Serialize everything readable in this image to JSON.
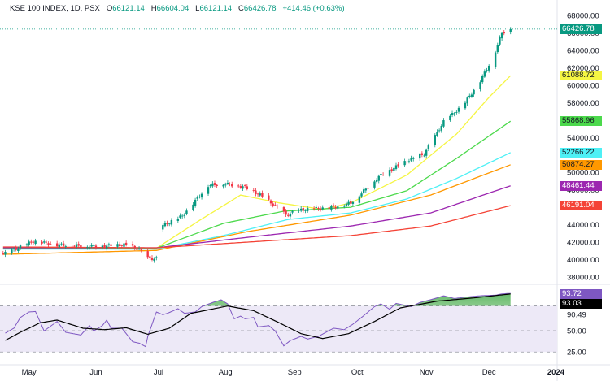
{
  "legend": {
    "symbol": "KSE 100 INDEX, 1D, PSX",
    "o_label": "O",
    "o": "66121.14",
    "h_label": "H",
    "h": "66604.04",
    "l_label": "L",
    "l": "66121.14",
    "c_label": "C",
    "c": "66426.78",
    "change": "+414.46 (+0.63%)"
  },
  "colors": {
    "up": "#089981",
    "down": "#f23645",
    "rsi": "#7e57c2",
    "rsi_ma": "#000000",
    "rsi_band_fill": "#ede9f7"
  },
  "chart_data": [
    {
      "type": "candlestick",
      "title": "KSE 100 INDEX, 1D, PSX",
      "ylim": [
        38000,
        68000
      ],
      "y_ticks": [
        "68000.00",
        "66000.00",
        "64000.00",
        "62000.00",
        "60000.00",
        "58000.00",
        "56000.00",
        "54000.00",
        "52000.00",
        "50000.00",
        "48000.00",
        "46000.00",
        "44000.00",
        "42000.00",
        "40000.00",
        "38000.00"
      ],
      "x_ticks": [
        "May",
        "Jun",
        "Jul",
        "Aug",
        "Sep",
        "Oct",
        "Nov",
        "Dec",
        "2024"
      ],
      "last_price": "66426.78",
      "close_keypoints": [
        [
          "2023-04-20",
          40600
        ],
        [
          "2023-05-04",
          42100
        ],
        [
          "2023-05-15",
          41700
        ],
        [
          "2023-06-01",
          41500
        ],
        [
          "2023-06-15",
          41700
        ],
        [
          "2023-06-22",
          41200
        ],
        [
          "2023-06-26",
          40150
        ],
        [
          "2023-06-30",
          40100
        ],
        [
          "2023-07-03",
          43900
        ],
        [
          "2023-07-12",
          45000
        ],
        [
          "2023-07-24",
          48500
        ],
        [
          "2023-08-01",
          48700
        ],
        [
          "2023-08-10",
          48300
        ],
        [
          "2023-08-17",
          47400
        ],
        [
          "2023-08-25",
          46000
        ],
        [
          "2023-08-29",
          45100
        ],
        [
          "2023-09-05",
          45700
        ],
        [
          "2023-09-20",
          46000
        ],
        [
          "2023-09-28",
          46500
        ],
        [
          "2023-10-12",
          49700
        ],
        [
          "2023-10-24",
          51300
        ],
        [
          "2023-11-01",
          52100
        ],
        [
          "2023-11-10",
          55800
        ],
        [
          "2023-11-19",
          57700
        ],
        [
          "2023-11-27",
          60500
        ],
        [
          "2023-12-03",
          63250
        ],
        [
          "2023-12-07",
          66000
        ],
        [
          "2023-12-11",
          66426.78
        ]
      ],
      "moving_averages": [
        {
          "color": "#f5f542",
          "label": "61088.72",
          "label_text": "#131722",
          "points": [
            [
              "2023-04-20",
              41300
            ],
            [
              "2023-06-30",
              41300
            ],
            [
              "2023-07-20",
              44500
            ],
            [
              "2023-08-08",
              47400
            ],
            [
              "2023-08-26",
              46500
            ],
            [
              "2023-09-15",
              45750
            ],
            [
              "2023-09-28",
              46500
            ],
            [
              "2023-10-24",
              49700
            ],
            [
              "2023-11-16",
              54400
            ],
            [
              "2023-12-01",
              58600
            ],
            [
              "2023-12-11",
              61088.72
            ]
          ]
        },
        {
          "color": "#4cd94c",
          "label": "55868.96",
          "label_text": "#131722",
          "points": [
            [
              "2023-04-20",
              41250
            ],
            [
              "2023-06-30",
              41300
            ],
            [
              "2023-07-31",
              44150
            ],
            [
              "2023-08-28",
              45550
            ],
            [
              "2023-09-28",
              46000
            ],
            [
              "2023-10-24",
              47900
            ],
            [
              "2023-11-16",
              51600
            ],
            [
              "2023-12-11",
              55868.96
            ]
          ]
        },
        {
          "color": "#4ef0f5",
          "label": "52266.22",
          "label_text": "#131722",
          "points": [
            [
              "2023-04-20",
              41200
            ],
            [
              "2023-06-30",
              41200
            ],
            [
              "2023-07-31",
              42750
            ],
            [
              "2023-08-30",
              44600
            ],
            [
              "2023-09-28",
              45350
            ],
            [
              "2023-10-24",
              46950
            ],
            [
              "2023-11-16",
              49300
            ],
            [
              "2023-12-11",
              52266.22
            ]
          ]
        },
        {
          "color": "#ff9800",
          "label": "50874.27",
          "label_text": "#131722",
          "points": [
            [
              "2023-04-20",
              40600
            ],
            [
              "2023-06-30",
              41050
            ],
            [
              "2023-08-11",
              43200
            ],
            [
              "2023-09-28",
              45100
            ],
            [
              "2023-11-04",
              47400
            ],
            [
              "2023-12-11",
              50874.27
            ]
          ]
        },
        {
          "color": "#9c27b0",
          "label": "48461.44",
          "label_text": "#ffffff",
          "points": [
            [
              "2023-04-20",
              41350
            ],
            [
              "2023-06-30",
              41350
            ],
            [
              "2023-08-11",
              42550
            ],
            [
              "2023-09-28",
              43850
            ],
            [
              "2023-11-04",
              45350
            ],
            [
              "2023-12-11",
              48461.44
            ]
          ]
        },
        {
          "color": "#f44336",
          "label": "46191.04",
          "label_text": "#ffffff",
          "points": [
            [
              "2023-04-20",
              41450
            ],
            [
              "2023-06-30",
              41350
            ],
            [
              "2023-08-11",
              42000
            ],
            [
              "2023-09-28",
              42750
            ],
            [
              "2023-11-04",
              43850
            ],
            [
              "2023-12-11",
              46191.04
            ]
          ]
        }
      ]
    },
    {
      "type": "line",
      "ylim": [
        22,
        100
      ],
      "bands": [
        25,
        50,
        79
      ],
      "y_ticks": [
        "90.49",
        "50.00",
        "25.00"
      ],
      "rsi_label": "93.72",
      "rsi_ma_label": "93.03",
      "rsi": [
        [
          "2023-04-21",
          47.1
        ],
        [
          "2023-04-25",
          52.9
        ],
        [
          "2023-04-28",
          65.5
        ],
        [
          "2023-05-02",
          71.9
        ],
        [
          "2023-05-05",
          72.5
        ],
        [
          "2023-05-09",
          49.7
        ],
        [
          "2023-05-15",
          60.8
        ],
        [
          "2023-05-19",
          48.1
        ],
        [
          "2023-05-26",
          44.9
        ],
        [
          "2023-05-30",
          56.0
        ],
        [
          "2023-06-01",
          49.7
        ],
        [
          "2023-06-05",
          56.0
        ],
        [
          "2023-06-07",
          62.4
        ],
        [
          "2023-06-09",
          52.9
        ],
        [
          "2023-06-14",
          52.9
        ],
        [
          "2023-06-19",
          37.0
        ],
        [
          "2023-06-22",
          35.3
        ],
        [
          "2023-06-25",
          31.3
        ],
        [
          "2023-06-26",
          43.3
        ],
        [
          "2023-06-30",
          71.9
        ],
        [
          "2023-07-03",
          68.7
        ],
        [
          "2023-07-05",
          70.3
        ],
        [
          "2023-07-10",
          75.7
        ],
        [
          "2023-07-13",
          70.3
        ],
        [
          "2023-07-18",
          71.9
        ],
        [
          "2023-07-21",
          78.2
        ],
        [
          "2023-07-26",
          83.0
        ],
        [
          "2023-07-30",
          86.2
        ],
        [
          "2023-08-02",
          81.4
        ],
        [
          "2023-08-05",
          63.9
        ],
        [
          "2023-08-08",
          67.0
        ],
        [
          "2023-08-10",
          63.9
        ],
        [
          "2023-08-14",
          65.5
        ],
        [
          "2023-08-16",
          54.3
        ],
        [
          "2023-08-21",
          56.0
        ],
        [
          "2023-08-24",
          49.7
        ],
        [
          "2023-08-28",
          32.2
        ],
        [
          "2023-08-31",
          38.5
        ],
        [
          "2023-09-05",
          43.3
        ],
        [
          "2023-09-08",
          40.2
        ],
        [
          "2023-09-13",
          43.3
        ],
        [
          "2023-09-20",
          52.9
        ],
        [
          "2023-09-25",
          51.2
        ],
        [
          "2023-09-29",
          57.6
        ],
        [
          "2023-10-03",
          65.5
        ],
        [
          "2023-10-09",
          78.2
        ],
        [
          "2023-10-12",
          81.4
        ],
        [
          "2023-10-16",
          75.1
        ],
        [
          "2023-10-19",
          82.0
        ],
        [
          "2023-10-26",
          78.2
        ],
        [
          "2023-10-30",
          83.0
        ],
        [
          "2023-11-06",
          87.7
        ],
        [
          "2023-11-10",
          90.9
        ],
        [
          "2023-11-15",
          87.7
        ],
        [
          "2023-11-20",
          89.3
        ],
        [
          "2023-11-27",
          90.9
        ],
        [
          "2023-12-04",
          91.6
        ],
        [
          "2023-12-07",
          93.1
        ],
        [
          "2023-12-11",
          93.72
        ]
      ],
      "rsi_ma": [
        [
          "2023-04-21",
          38.6
        ],
        [
          "2023-04-28",
          48.1
        ],
        [
          "2023-05-07",
          59.1
        ],
        [
          "2023-05-15",
          62.4
        ],
        [
          "2023-05-27",
          52.9
        ],
        [
          "2023-06-06",
          51.2
        ],
        [
          "2023-06-16",
          53.4
        ],
        [
          "2023-06-26",
          45.8
        ],
        [
          "2023-07-06",
          52.9
        ],
        [
          "2023-07-16",
          70.3
        ],
        [
          "2023-08-02",
          78.9
        ],
        [
          "2023-08-14",
          73.4
        ],
        [
          "2023-08-26",
          59.1
        ],
        [
          "2023-09-05",
          46.5
        ],
        [
          "2023-09-15",
          40.8
        ],
        [
          "2023-09-27",
          46.5
        ],
        [
          "2023-10-09",
          60.8
        ],
        [
          "2023-10-21",
          76.7
        ],
        [
          "2023-11-07",
          84.6
        ],
        [
          "2023-11-24",
          88.4
        ],
        [
          "2023-12-11",
          93.03
        ]
      ]
    }
  ]
}
